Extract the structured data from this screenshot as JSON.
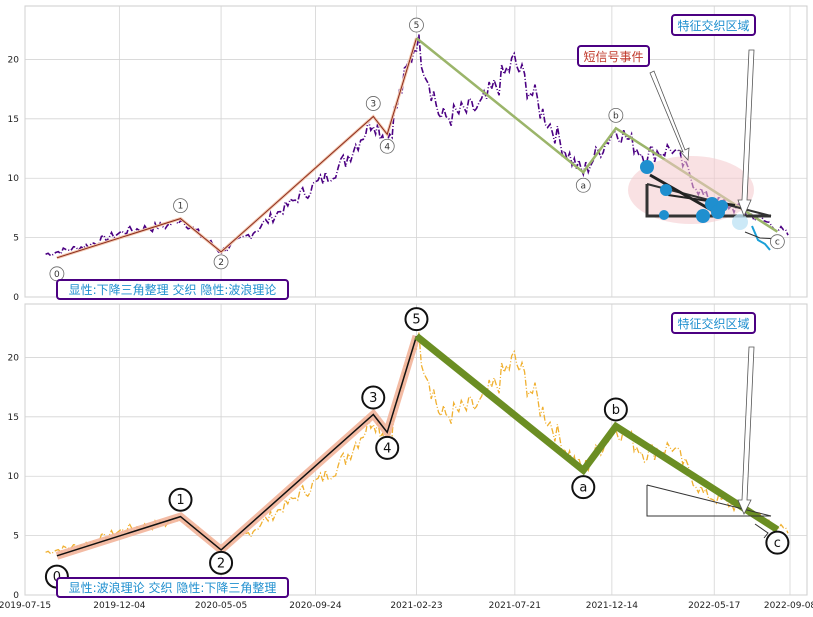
{
  "colors": {
    "background": "#ffffff",
    "grid": "#d4d4d4",
    "price_top": "#4b0082",
    "price_bottom": "#f0b030",
    "wave_line": "#8b2a1a",
    "wave_halo": "#f2b49a",
    "corrective": "#9bb56a",
    "corrective_bold": "#6b8e23",
    "triangle": "#333333",
    "box_border": "#4b0082",
    "box_text": "#1f8fcf",
    "signal_text": "#c0392b",
    "blob": "#1f8fcf",
    "ellipse": "#f4c9cc",
    "tail": "#1aa0d8"
  },
  "top_panel": {
    "caption": "显性:下降三角整理 交织 隐性:波浪理论",
    "feature_box": "特征交织区域",
    "signal_box": "短信号事件"
  },
  "bottom_panel": {
    "caption": "显性:波浪理论 交织 隐性:下降三角整理",
    "feature_box": "特征交织区域"
  },
  "chart_data": [
    {
      "type": "line",
      "panel": "top",
      "title": "",
      "xlabel": "",
      "ylabel": "",
      "ylim": [
        0,
        24.5
      ],
      "yticks": [
        0,
        5,
        10,
        15,
        20
      ],
      "series": [
        {
          "values": [
            {
              "x": "2019-08-15",
              "y": 3.6
            },
            {
              "x": "2019-10-15",
              "y": 4.3
            },
            {
              "x": "2019-12-15",
              "y": 5.6
            },
            {
              "x": "2020-02-15",
              "y": 6.0
            },
            {
              "x": "2020-03-05",
              "y": 6.6
            },
            {
              "x": "2020-05-05",
              "y": 3.8
            },
            {
              "x": "2020-06-15",
              "y": 5.2
            },
            {
              "x": "2020-09-01",
              "y": 8.5
            },
            {
              "x": "2020-11-01",
              "y": 11.0
            },
            {
              "x": "2020-12-20",
              "y": 15.0
            },
            {
              "x": "2021-01-10",
              "y": 13.2
            },
            {
              "x": "2021-02-23",
              "y": 21.8
            },
            {
              "x": "2021-04-01",
              "y": 15.0
            },
            {
              "x": "2021-06-01",
              "y": 16.0
            },
            {
              "x": "2021-07-20",
              "y": 19.8
            },
            {
              "x": "2021-09-01",
              "y": 15.5
            },
            {
              "x": "2021-10-15",
              "y": 11.5
            },
            {
              "x": "2021-11-01",
              "y": 10.5
            },
            {
              "x": "2021-12-20",
              "y": 14.2
            },
            {
              "x": "2022-02-01",
              "y": 12.0
            },
            {
              "x": "2022-03-15",
              "y": 12.5
            },
            {
              "x": "2022-05-01",
              "y": 8.5
            },
            {
              "x": "2022-07-01",
              "y": 7.2
            },
            {
              "x": "2022-08-15",
              "y": 6.0
            },
            {
              "x": "2022-09-05",
              "y": 5.2
            }
          ]
        }
      ],
      "wave_points": [
        {
          "label": "0",
          "x": "2019-09-01",
          "y": 3.3
        },
        {
          "label": "1",
          "x": "2020-03-05",
          "y": 6.6
        },
        {
          "label": "2",
          "x": "2020-05-05",
          "y": 3.8
        },
        {
          "label": "3",
          "x": "2020-12-20",
          "y": 15.2
        },
        {
          "label": "4",
          "x": "2021-01-10",
          "y": 13.7
        },
        {
          "label": "5",
          "x": "2021-02-23",
          "y": 21.8
        },
        {
          "label": "a",
          "x": "2021-11-01",
          "y": 10.5
        },
        {
          "label": "b",
          "x": "2021-12-20",
          "y": 14.2
        },
        {
          "label": "c",
          "x": "2022-08-20",
          "y": 5.5
        }
      ]
    },
    {
      "type": "line",
      "panel": "bottom",
      "title": "",
      "xlabel": "",
      "ylabel": "",
      "ylim": [
        0,
        24.5
      ],
      "yticks": [
        0,
        5,
        10,
        15,
        20
      ],
      "xticks": [
        "2019-07-15",
        "2019-12-04",
        "2020-05-05",
        "2020-09-24",
        "2021-02-23",
        "2021-07-21",
        "2021-12-14",
        "2022-05-17",
        "2022-09-08"
      ],
      "wave_points": [
        {
          "label": "0",
          "x": "2019-09-01",
          "y": 3.3
        },
        {
          "label": "1",
          "x": "2020-03-05",
          "y": 6.6
        },
        {
          "label": "2",
          "x": "2020-05-05",
          "y": 3.8
        },
        {
          "label": "3",
          "x": "2020-12-20",
          "y": 15.2
        },
        {
          "label": "4",
          "x": "2021-01-10",
          "y": 13.7
        },
        {
          "label": "5",
          "x": "2021-02-23",
          "y": 21.8
        },
        {
          "label": "a",
          "x": "2021-11-01",
          "y": 10.5
        },
        {
          "label": "b",
          "x": "2021-12-20",
          "y": 14.2
        },
        {
          "label": "c",
          "x": "2022-08-20",
          "y": 5.5
        }
      ],
      "triangle": [
        {
          "x": "2022-03-25",
          "y": 9.4
        },
        {
          "x": "2022-03-25",
          "y": 6.8
        },
        {
          "x": "2022-09-01",
          "y": 6.8
        }
      ]
    }
  ]
}
